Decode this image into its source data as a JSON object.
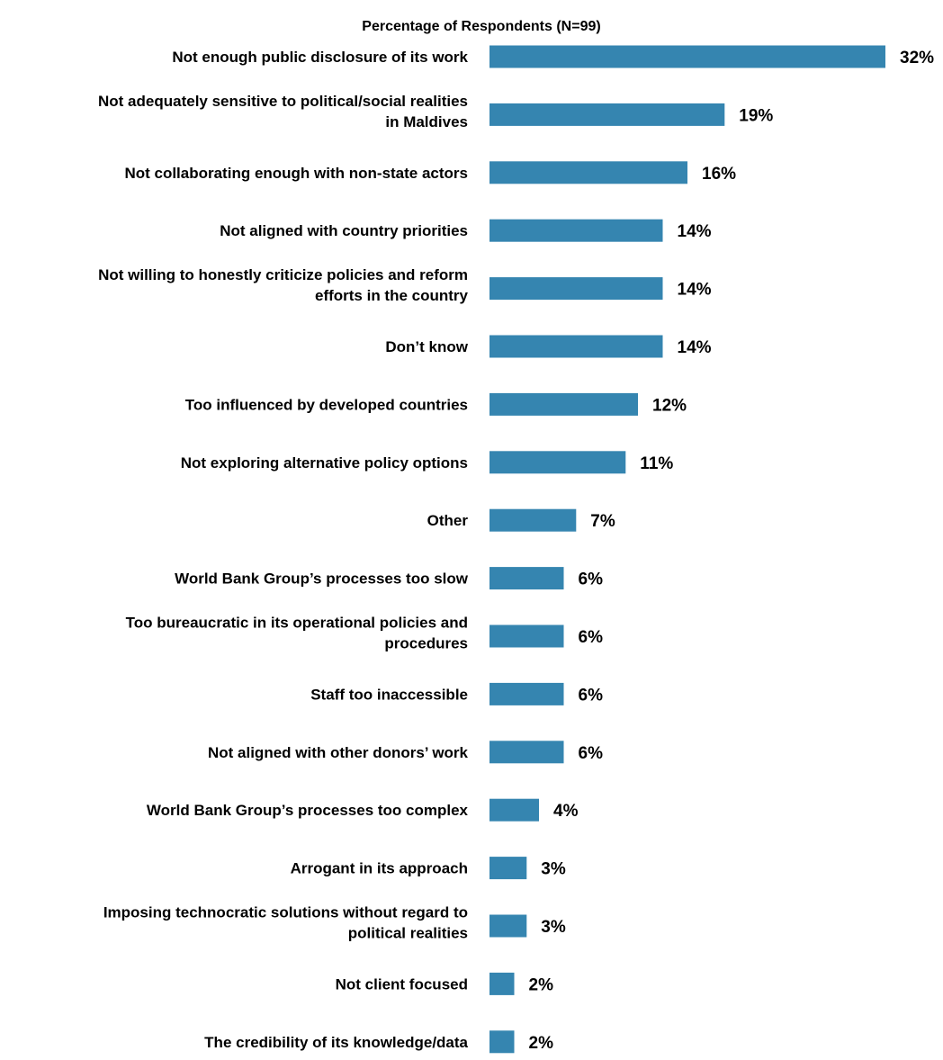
{
  "chart_data": {
    "type": "bar",
    "orientation": "horizontal",
    "title": "Percentage of Respondents (N=99)",
    "xlabel": "",
    "ylabel": "",
    "xlim": [
      0,
      32
    ],
    "grid": false,
    "bar_color": "#3585b0",
    "categories": [
      [
        "Not enough public disclosure of its work"
      ],
      [
        "Not adequately sensitive to political/social realities",
        "in Maldives"
      ],
      [
        "Not collaborating enough with non-state actors"
      ],
      [
        "Not aligned with country priorities"
      ],
      [
        "Not willing to honestly criticize policies and reform",
        "efforts in the country"
      ],
      [
        "Don’t know"
      ],
      [
        "Too influenced by developed countries"
      ],
      [
        "Not exploring alternative policy options"
      ],
      [
        "Other"
      ],
      [
        "World Bank Group’s processes too slow"
      ],
      [
        "Too bureaucratic in its operational policies and",
        "procedures"
      ],
      [
        "Staff too inaccessible"
      ],
      [
        "Not aligned with other donors’ work"
      ],
      [
        "World Bank Group’s processes too complex"
      ],
      [
        "Arrogant in its approach"
      ],
      [
        "Imposing technocratic solutions without regard to",
        "political realities"
      ],
      [
        "Not client  focused"
      ],
      [
        "The credibility of its knowledge/data"
      ]
    ],
    "values": [
      32,
      19,
      16,
      14,
      14,
      14,
      12,
      11,
      7,
      6,
      6,
      6,
      6,
      4,
      3,
      3,
      2,
      2
    ],
    "value_labels": [
      "32%",
      "19%",
      "16%",
      "14%",
      "14%",
      "14%",
      "12%",
      "11%",
      "7%",
      "6%",
      "6%",
      "6%",
      "6%",
      "4%",
      "3%",
      "3%",
      "2%",
      "2%"
    ]
  }
}
